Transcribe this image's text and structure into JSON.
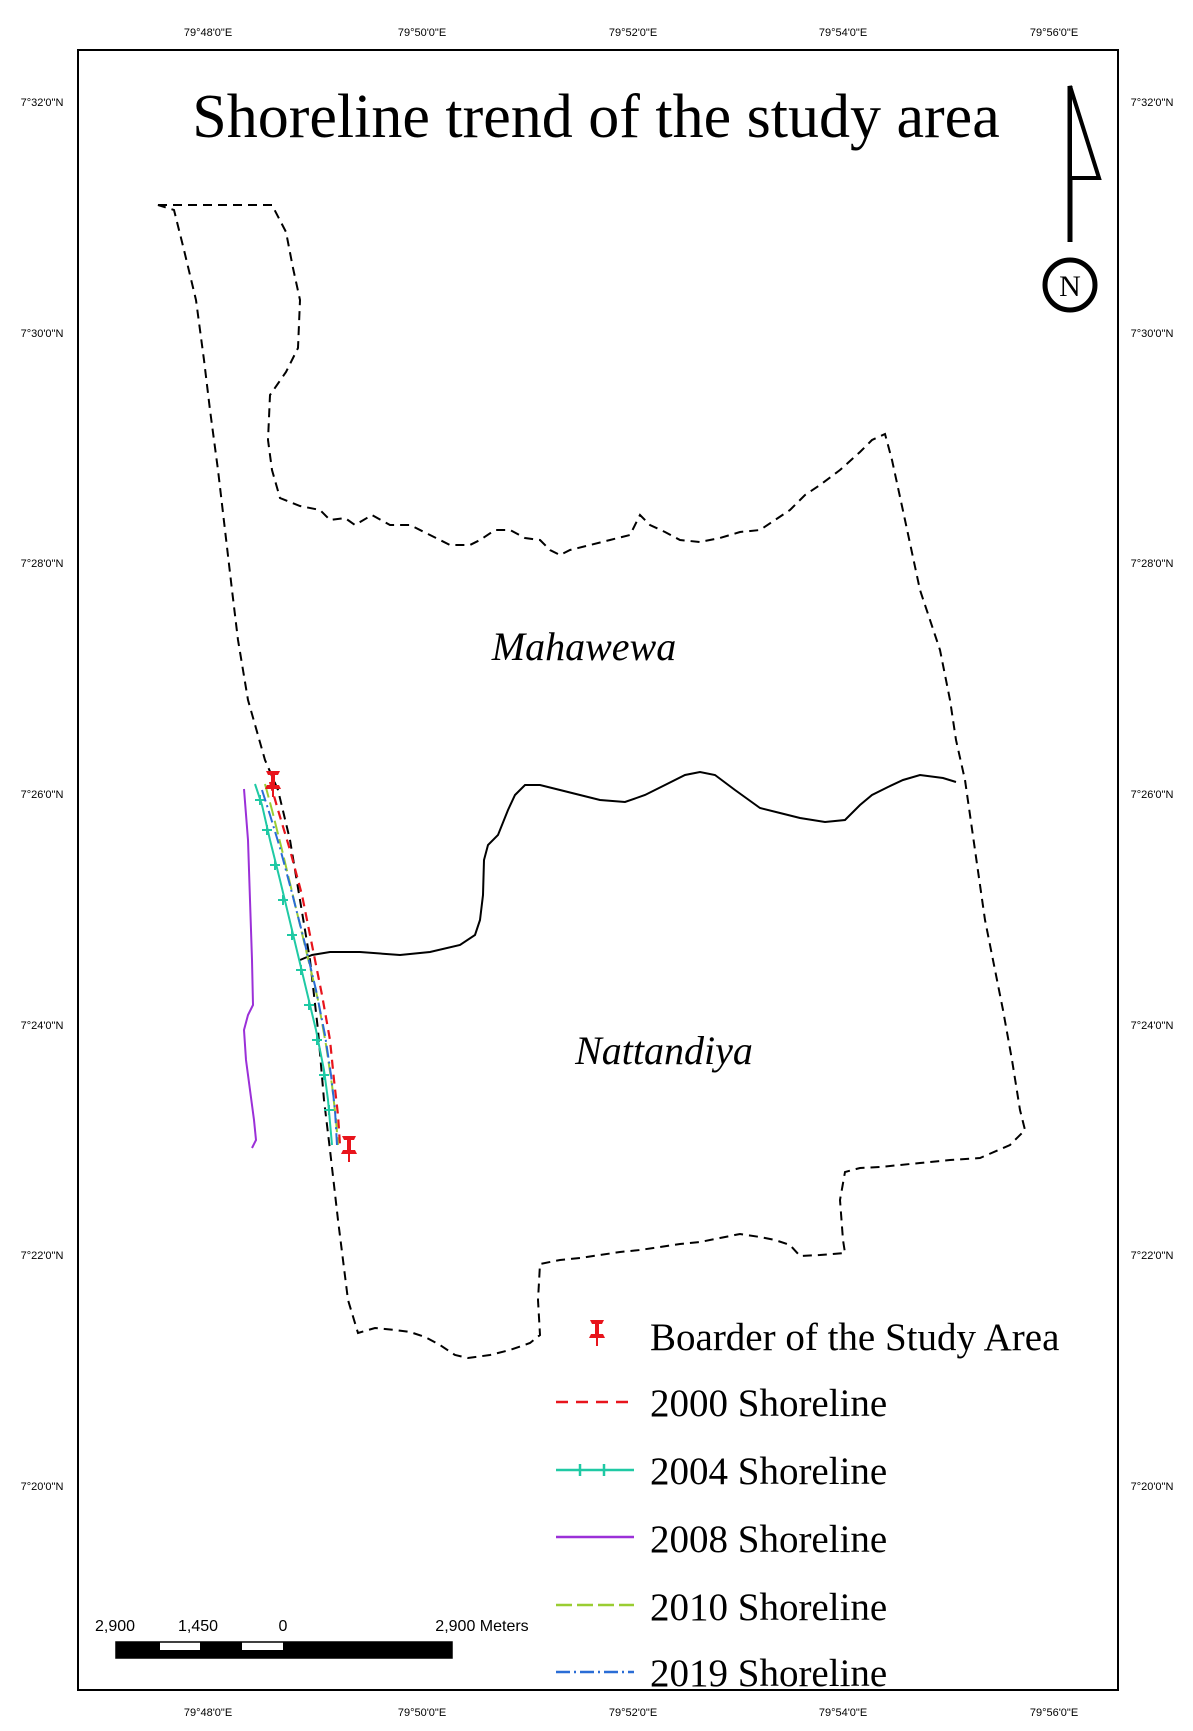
{
  "title": "Shoreline trend of the study area",
  "grid": {
    "lon_labels": [
      "79°48'0\"E",
      "79°50'0\"E",
      "79°52'0\"E",
      "79°54'0\"E",
      "79°56'0\"E"
    ],
    "lat_labels": [
      "7°32'0\"N",
      "7°30'0\"N",
      "7°28'0\"N",
      "7°26'0\"N",
      "7°24'0\"N",
      "7°22'0\"N",
      "7°20'0\"N"
    ]
  },
  "places": {
    "mahawewa": "Mahawewa",
    "nattandiya": "Nattandiya"
  },
  "north_arrow": {
    "letter": "N"
  },
  "legend": {
    "items": [
      {
        "label": "Boarder of the Study Area",
        "symbol": "pin",
        "color": "#e8141c"
      },
      {
        "label": "2000 Shoreline",
        "symbol": "dash",
        "color": "#e8141c"
      },
      {
        "label": "2004 Shoreline",
        "symbol": "cross",
        "color": "#1fc9a4"
      },
      {
        "label": "2008 Shoreline",
        "symbol": "solid",
        "color": "#9b30d8"
      },
      {
        "label": "2010 Shoreline",
        "symbol": "longdash",
        "color": "#9acd32"
      },
      {
        "label": "2019 Shoreline",
        "symbol": "dashdot",
        "color": "#2a6dd6"
      }
    ]
  },
  "scale_bar": {
    "labels": [
      "2,900",
      "1,450",
      "0",
      "2,900 Meters"
    ]
  }
}
